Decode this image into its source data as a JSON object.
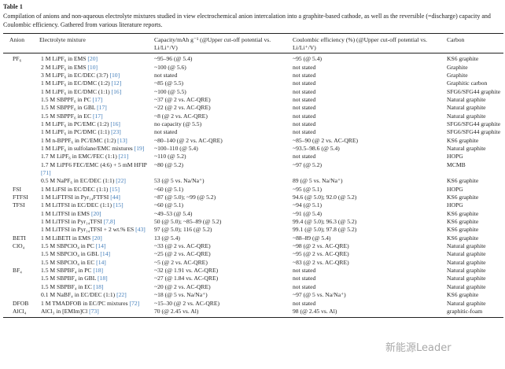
{
  "table_label": "Table 1",
  "caption": "Compilation of anions and non-aqueous electrolyte mixtures studied in view electrochemical anion intercalation into a graphite-based cathode, as well as the reversible (=discharge) capacity and Coulombic efficiency. Gathered from various literature reports.",
  "headers": [
    "Anion",
    "Electrolyte mixture",
    "Capacity/mAh g⁻¹ (@Upper cut-off potential vs. Li/Li⁺/V)",
    "Coulombic efficiency (%) (@Upper cut-off potential vs. Li/Li⁺/V)",
    "Carbon"
  ],
  "rows": [
    {
      "anion": "PF₆",
      "mix": "1 M LiPF₆ in EMS ",
      "ref": "[20]",
      "cap": "~95–96 (@ 5.4)",
      "ce": "~95 (@ 5.4)",
      "carbon": "KS6 graphite"
    },
    {
      "anion": "",
      "mix": "2 M LiPF₆ in EMS ",
      "ref": "[10]",
      "cap": "~100 (@ 5.6)",
      "ce": "not stated",
      "carbon": "Graphite"
    },
    {
      "anion": "",
      "mix": "3 M LiPF₆ in EC/DEC (3:7) ",
      "ref": "[10]",
      "cap": "not stated",
      "ce": "not stated",
      "carbon": "Graphite"
    },
    {
      "anion": "",
      "mix": "1 M LiPF₆ in EC/DMC (1:2) ",
      "ref": "[12]",
      "cap": "~85 (@ 5.5)",
      "ce": "not stated",
      "carbon": "Graphitic carbon"
    },
    {
      "anion": "",
      "mix": "1 M LiPF₆ in EC/DMC (1:1) ",
      "ref": "[16]",
      "cap": "~100 (@ 5.5)",
      "ce": "not stated",
      "carbon": "SFG6/SFG44 graphite"
    },
    {
      "anion": "",
      "mix": "1.5 M SBPPF₆ in PC ",
      "ref": "[17]",
      "cap": "~37 (@ 2 vs. AC-QRE)",
      "ce": "not stated",
      "carbon": "Natural graphite"
    },
    {
      "anion": "",
      "mix": "1.5 M SBPPF₆ in GBL ",
      "ref": "[17]",
      "cap": "~22 (@ 2 vs. AC-QRE)",
      "ce": "not stated",
      "carbon": "Natural graphite"
    },
    {
      "anion": "",
      "mix": "1.5 M SBPPF₆ in EC ",
      "ref": "[17]",
      "cap": "~8 (@ 2 vs. AC-QRE)",
      "ce": "not stated",
      "carbon": "Natural graphite"
    },
    {
      "anion": "",
      "mix": "1 M LiPF₆ in PC/EMC (1:2) ",
      "ref": "[16]",
      "cap": "no capacity (@ 5.5)",
      "ce": "not stated",
      "carbon": "SFG6/SFG44 graphite"
    },
    {
      "anion": "",
      "mix": "1 M LiPF₆ in PC/DMC (1:1) ",
      "ref": "[23]",
      "cap": "not stated",
      "ce": "not stated",
      "carbon": "SFG6/SFG44 graphite"
    },
    {
      "anion": "",
      "mix": "1 M n-BPPF₆ in PC/EMC (1:2) ",
      "ref": "[13]",
      "cap": "~80–140 (@ 2 vs. AC-QRE)",
      "ce": "~85–90 (@ 2 vs. AC-QRE)",
      "carbon": "KS6 graphite"
    },
    {
      "anion": "",
      "mix": "1 M LiPF₆ in sulfolane/EMC mixtures ",
      "ref": "[19]",
      "cap": "~100–110 (@ 5.4)",
      "ce": "~93.5–98.6 (@ 5.4)",
      "carbon": "Natural graphite"
    },
    {
      "anion": "",
      "mix": "1.7 M LiPF₆ in EMC/FEC (1:1) ",
      "ref": "[21]",
      "cap": "~110 (@ 5.2)",
      "ce": "not stated",
      "carbon": "HOPG"
    },
    {
      "anion": "",
      "mix": "1.7 M LiPF6 FEC/EMC (4:6) + 5 mM HFIP ",
      "ref": "[71]",
      "cap": "~80 (@ 5.2)",
      "ce": "~97 (@ 5.2)",
      "carbon": "MCMB"
    },
    {
      "anion": "",
      "mix": "0.5 M NaPF₆ in EC/DEC (1:1) ",
      "ref": "[22]",
      "cap": "53 (@ 5 vs. Na/Na⁺)",
      "ce": "89 (@ 5 vs. Na/Na⁺)",
      "carbon": "KS6 graphite"
    },
    {
      "anion": "FSI",
      "mix": "1 M LiFSI in EC/DEC (1:1) ",
      "ref": "[15]",
      "cap": "~60 (@ 5.1)",
      "ce": "~95 (@ 5.1)",
      "carbon": "HOPG"
    },
    {
      "anion": "FTFSI",
      "mix": "1 M LiFTFSI in Pyr₁₄FTFSI ",
      "ref": "[44]",
      "cap": "~87 (@ 5.0); ~99 (@ 5.2)",
      "ce": "94.6 (@ 5.0); 92.0 (@ 5.2)",
      "carbon": "KS6 graphite"
    },
    {
      "anion": "TFSI",
      "mix": "1 M LiTFSI in EC/DEC (1:1) ",
      "ref": "[15]",
      "cap": "~60 (@ 5.1)",
      "ce": "~94 (@ 5.1)",
      "carbon": "HOPG"
    },
    {
      "anion": "",
      "mix": "1 M LiTFSI in EMS ",
      "ref": "[20]",
      "cap": "~49–53 (@ 5.4)",
      "ce": "~91 (@ 5.4)",
      "carbon": "KS6 graphite"
    },
    {
      "anion": "",
      "mix": "1 M LiTFSI in Pyr₁₄TFSI ",
      "ref": "[7,8]",
      "cap": "50 (@ 5.0); ~85–89 (@ 5.2)",
      "ce": "99.4 (@ 5.0); 96.3 (@ 5.2)",
      "carbon": "KS6 graphite"
    },
    {
      "anion": "",
      "mix": "1 M LiTFSI in Pyr₁₄TFSI + 2 wt.% ES ",
      "ref": "[43]",
      "cap": "97 (@ 5.0); 116 (@ 5.2)",
      "ce": "99.1 (@ 5.0); 97.8 (@ 5.2)",
      "carbon": "KS6 graphite"
    },
    {
      "anion": "BETI",
      "mix": "1 M LiBETI in EMS ",
      "ref": "[20]",
      "cap": "13 (@ 5.4)",
      "ce": "~88–89 (@ 5.4)",
      "carbon": "KS6 graphite"
    },
    {
      "anion": "ClO₄",
      "mix": "1.5 M SBPClO₄ in PC ",
      "ref": "[14]",
      "cap": "~33 (@ 2 vs. AC-QRE)",
      "ce": "~98 (@ 2 vs. AC-QRE)",
      "carbon": "Natural graphite"
    },
    {
      "anion": "",
      "mix": "1.5 M SBPClO₄ in GBL ",
      "ref": "[14]",
      "cap": "~25 (@ 2 vs. AC-QRE)",
      "ce": "~95 (@ 2 vs. AC-QRE)",
      "carbon": "Natural graphite"
    },
    {
      "anion": "",
      "mix": "1.5 M SBPClO₄ in EC ",
      "ref": "[14]",
      "cap": "~5 (@ 2 vs. AC-QRE)",
      "ce": "~83 (@ 2 vs. AC-QRE)",
      "carbon": "Natural graphite"
    },
    {
      "anion": "BF₄",
      "mix": "1.5 M SBPBF₄ in PC ",
      "ref": "[18]",
      "cap": "~32 (@ 1.91 vs. AC-QRE)",
      "ce": "not stated",
      "carbon": "Natural graphite"
    },
    {
      "anion": "",
      "mix": "1.5 M SBPBF₄ in GBL ",
      "ref": "[18]",
      "cap": "~27 (@ 1.84 vs. AC-QRE)",
      "ce": "not stated",
      "carbon": "Natural graphite"
    },
    {
      "anion": "",
      "mix": "1.5 M SBPBF₄ in EC ",
      "ref": "[18]",
      "cap": "~20 (@ 2 vs. AC-QRE)",
      "ce": "not stated",
      "carbon": "Natural graphite"
    },
    {
      "anion": "",
      "mix": "0.1 M NaBF₄ in EC/DEC (1:1) ",
      "ref": "[22]",
      "cap": "~18 (@ 5 vs. Na/Na⁺)",
      "ce": "~97 (@ 5 vs. Na/Na⁺)",
      "carbon": "KS6 graphite"
    },
    {
      "anion": "DFOB",
      "mix": "1 M TMADFOB in EC/PC mixtures ",
      "ref": "[72]",
      "cap": "~15–30 (@ 2 vs. AC-QRE)",
      "ce": "not stated",
      "carbon": "Natural graphite"
    },
    {
      "anion": "AlCl₄",
      "mix": "AlCl₃ in [EMIm]Cl ",
      "ref": "[73]",
      "cap": "70 (@ 2.45 vs. Al)",
      "ce": "98 (@ 2.45 vs. Al)",
      "carbon": "graphitic-foam"
    }
  ],
  "watermark": "新能源Leader"
}
